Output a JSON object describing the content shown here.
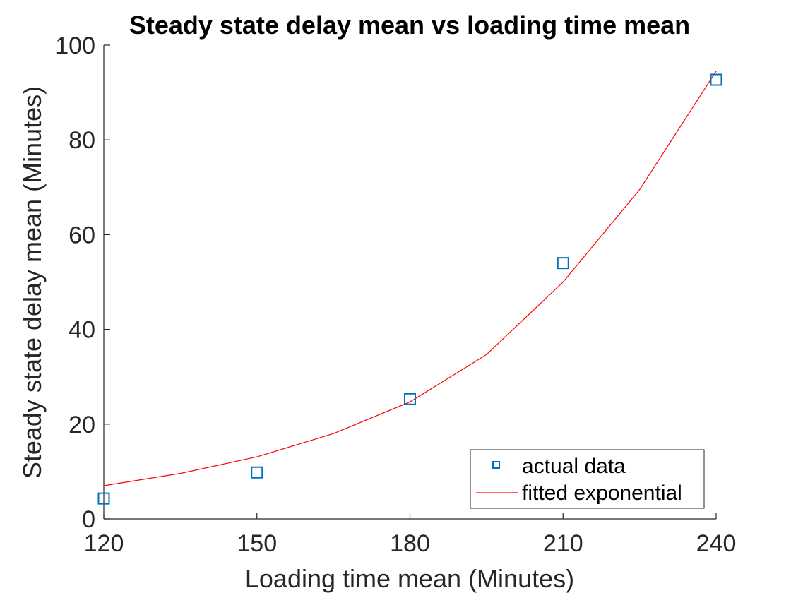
{
  "chart_data": {
    "type": "scatter",
    "title": "Steady state delay mean vs loading time mean",
    "xlabel": "Loading time mean (Minutes)",
    "ylabel": "Steady state delay mean (Minutes)",
    "xlim": [
      120,
      240
    ],
    "ylim": [
      0,
      100
    ],
    "xticks": [
      120,
      150,
      180,
      210,
      240
    ],
    "yticks": [
      0,
      20,
      40,
      60,
      80,
      100
    ],
    "grid": false,
    "legend_position": "bottom-right",
    "series": [
      {
        "name": "actual data",
        "kind": "scatter",
        "marker": "square",
        "color": "#0072BD",
        "x": [
          120,
          150,
          180,
          210,
          240
        ],
        "y": [
          4.3,
          9.8,
          25.3,
          54.0,
          92.7
        ]
      },
      {
        "name": "fitted exponential",
        "kind": "line",
        "color": "#FF0000",
        "x": [
          120,
          135,
          150,
          165,
          180,
          195,
          210,
          225,
          240
        ],
        "y": [
          7.0,
          9.6,
          13.1,
          18.0,
          24.7,
          34.7,
          50.0,
          69.5,
          94.5
        ]
      }
    ]
  }
}
